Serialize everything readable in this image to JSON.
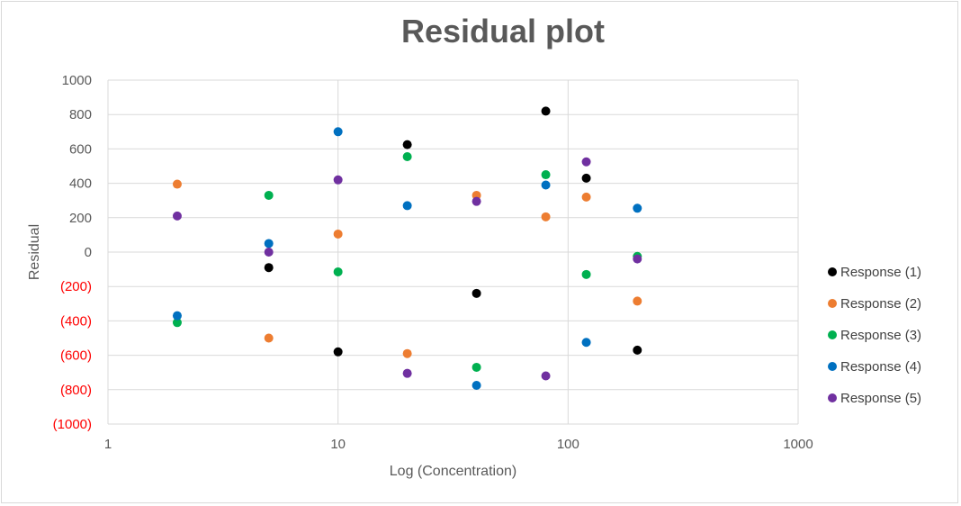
{
  "chart_data": {
    "type": "scatter",
    "title": "Residual plot",
    "xlabel": "Log (Concentration)",
    "ylabel": "Residual",
    "xscale": "log",
    "xlim": [
      1,
      1000
    ],
    "ylim": [
      -1000,
      1000
    ],
    "x_ticks": [
      "1",
      "10",
      "100",
      "1000"
    ],
    "y_ticks": [
      {
        "value": 1000,
        "label": "1000"
      },
      {
        "value": 800,
        "label": "800"
      },
      {
        "value": 600,
        "label": "600"
      },
      {
        "value": 400,
        "label": "400"
      },
      {
        "value": 200,
        "label": "200"
      },
      {
        "value": 0,
        "label": "0"
      },
      {
        "value": -200,
        "label": "(200)"
      },
      {
        "value": -400,
        "label": "(400)"
      },
      {
        "value": -600,
        "label": "(600)"
      },
      {
        "value": -800,
        "label": "(800)"
      },
      {
        "value": -1000,
        "label": "(1000)"
      }
    ],
    "negative_label_color": "#ff0000",
    "grid": true,
    "legend_position": "right",
    "series": [
      {
        "name": "Response (1)",
        "color": "#000000",
        "points": [
          [
            5,
            -90
          ],
          [
            10,
            -580
          ],
          [
            20,
            625
          ],
          [
            40,
            -240
          ],
          [
            80,
            820
          ],
          [
            120,
            430
          ],
          [
            200,
            -570
          ]
        ]
      },
      {
        "name": "Response (2)",
        "color": "#ed7d31",
        "points": [
          [
            2,
            395
          ],
          [
            5,
            -500
          ],
          [
            10,
            105
          ],
          [
            20,
            -590
          ],
          [
            40,
            330
          ],
          [
            80,
            205
          ],
          [
            120,
            320
          ],
          [
            200,
            -285
          ]
        ]
      },
      {
        "name": "Response (3)",
        "color": "#00b050",
        "points": [
          [
            2,
            -410
          ],
          [
            5,
            330
          ],
          [
            10,
            -115
          ],
          [
            20,
            555
          ],
          [
            40,
            -670
          ],
          [
            80,
            450
          ],
          [
            120,
            -130
          ],
          [
            200,
            -25
          ]
        ]
      },
      {
        "name": "Response (4)",
        "color": "#0070c0",
        "points": [
          [
            2,
            -370
          ],
          [
            5,
            50
          ],
          [
            10,
            700
          ],
          [
            20,
            270
          ],
          [
            40,
            -775
          ],
          [
            80,
            390
          ],
          [
            120,
            -525
          ],
          [
            200,
            255
          ]
        ]
      },
      {
        "name": "Response (5)",
        "color": "#7030a0",
        "points": [
          [
            2,
            210
          ],
          [
            5,
            0
          ],
          [
            10,
            420
          ],
          [
            20,
            -705
          ],
          [
            40,
            295
          ],
          [
            80,
            -720
          ],
          [
            120,
            525
          ],
          [
            200,
            -40
          ]
        ]
      }
    ]
  }
}
